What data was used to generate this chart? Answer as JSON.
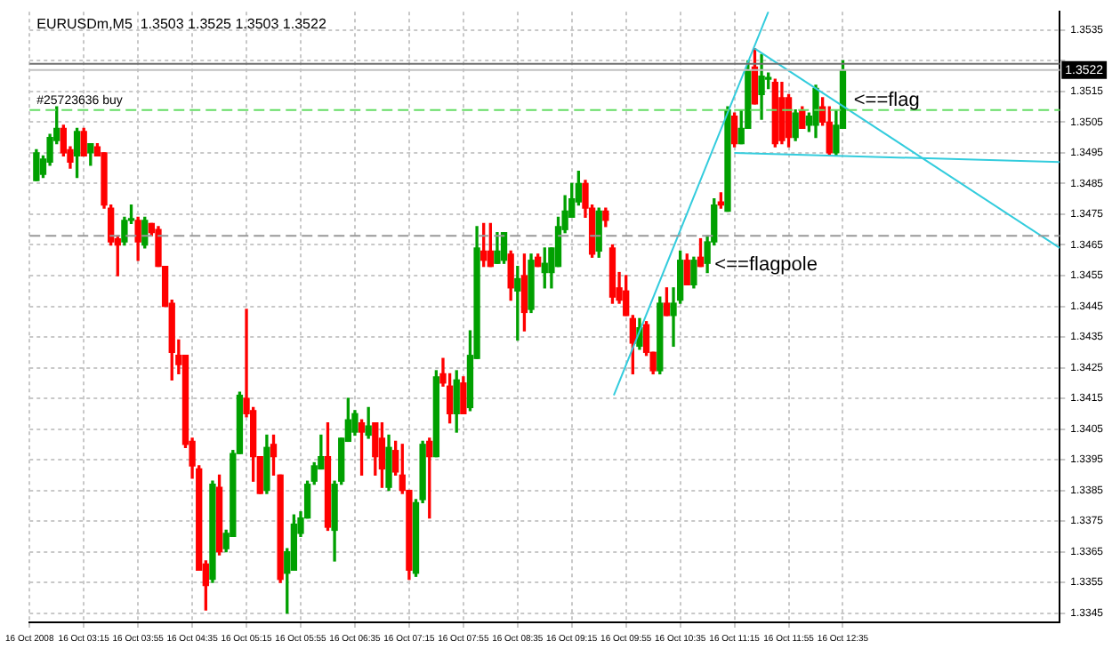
{
  "chart_data": {
    "type": "candlestick",
    "title": "EURUSDm,M5  1.3503 1.3525 1.3503 1.3522",
    "x": [
      "2008-10-16T02:40",
      "2008-10-16T02:45",
      "2008-10-16T02:50",
      "2008-10-16T02:55",
      "2008-10-16T03:00",
      "2008-10-16T03:05",
      "2008-10-16T03:10",
      "2008-10-16T03:15",
      "2008-10-16T03:20",
      "2008-10-16T03:25",
      "2008-10-16T03:30",
      "2008-10-16T03:35",
      "2008-10-16T03:40",
      "2008-10-16T03:45",
      "2008-10-16T03:50",
      "2008-10-16T03:55",
      "2008-10-16T04:00",
      "2008-10-16T04:05",
      "2008-10-16T04:10",
      "2008-10-16T04:15",
      "2008-10-16T04:20",
      "2008-10-16T04:25",
      "2008-10-16T04:30",
      "2008-10-16T04:35",
      "2008-10-16T04:40",
      "2008-10-16T04:45",
      "2008-10-16T04:50",
      "2008-10-16T04:55",
      "2008-10-16T05:00",
      "2008-10-16T05:05",
      "2008-10-16T05:10",
      "2008-10-16T05:15",
      "2008-10-16T05:20",
      "2008-10-16T05:25",
      "2008-10-16T05:30",
      "2008-10-16T05:35",
      "2008-10-16T05:40",
      "2008-10-16T05:45",
      "2008-10-16T05:50",
      "2008-10-16T05:55",
      "2008-10-16T06:00",
      "2008-10-16T06:05",
      "2008-10-16T06:10",
      "2008-10-16T06:15",
      "2008-10-16T06:20",
      "2008-10-16T06:25",
      "2008-10-16T06:30",
      "2008-10-16T06:35",
      "2008-10-16T06:40",
      "2008-10-16T06:45",
      "2008-10-16T06:50",
      "2008-10-16T06:55",
      "2008-10-16T07:00",
      "2008-10-16T07:05",
      "2008-10-16T07:10",
      "2008-10-16T07:15",
      "2008-10-16T07:20",
      "2008-10-16T07:25",
      "2008-10-16T07:30",
      "2008-10-16T07:35",
      "2008-10-16T07:40",
      "2008-10-16T07:45",
      "2008-10-16T07:50",
      "2008-10-16T07:55",
      "2008-10-16T08:00",
      "2008-10-16T08:05",
      "2008-10-16T08:10",
      "2008-10-16T08:15",
      "2008-10-16T08:20",
      "2008-10-16T08:25",
      "2008-10-16T08:30",
      "2008-10-16T08:35",
      "2008-10-16T08:40",
      "2008-10-16T08:45",
      "2008-10-16T08:50",
      "2008-10-16T08:55",
      "2008-10-16T09:00",
      "2008-10-16T09:05",
      "2008-10-16T09:10",
      "2008-10-16T09:15",
      "2008-10-16T09:20",
      "2008-10-16T09:25",
      "2008-10-16T09:30",
      "2008-10-16T09:35",
      "2008-10-16T09:40",
      "2008-10-16T09:45",
      "2008-10-16T09:50",
      "2008-10-16T09:55",
      "2008-10-16T10:00",
      "2008-10-16T10:05",
      "2008-10-16T10:10",
      "2008-10-16T10:15",
      "2008-10-16T10:20",
      "2008-10-16T10:25",
      "2008-10-16T10:30",
      "2008-10-16T10:35",
      "2008-10-16T10:40",
      "2008-10-16T10:45",
      "2008-10-16T10:50",
      "2008-10-16T10:55",
      "2008-10-16T11:00",
      "2008-10-16T11:05",
      "2008-10-16T11:10",
      "2008-10-16T11:15",
      "2008-10-16T11:20",
      "2008-10-16T11:25",
      "2008-10-16T11:30",
      "2008-10-16T11:35",
      "2008-10-16T11:40",
      "2008-10-16T11:45",
      "2008-10-16T11:50",
      "2008-10-16T11:55",
      "2008-10-16T12:00",
      "2008-10-16T12:05",
      "2008-10-16T12:10",
      "2008-10-16T12:15",
      "2008-10-16T12:20",
      "2008-10-16T12:25",
      "2008-10-16T12:30",
      "2008-10-16T12:35"
    ],
    "ohlc": [
      [
        1.3486,
        1.3496,
        1.3486,
        1.3495
      ],
      [
        1.3488,
        1.3494,
        1.3487,
        1.3493
      ],
      [
        1.3492,
        1.3501,
        1.3491,
        1.35
      ],
      [
        1.3499,
        1.351,
        1.3498,
        1.3503
      ],
      [
        1.3503,
        1.3504,
        1.3494,
        1.3495
      ],
      [
        1.3496,
        1.3497,
        1.349,
        1.3492
      ],
      [
        1.3494,
        1.3503,
        1.3487,
        1.3502
      ],
      [
        1.3502,
        1.3503,
        1.3494,
        1.3494
      ],
      [
        1.3495,
        1.3498,
        1.3491,
        1.3498
      ],
      [
        1.3497,
        1.3498,
        1.3494,
        1.3494
      ],
      [
        1.3495,
        1.3495,
        1.3477,
        1.3478
      ],
      [
        1.3477,
        1.3478,
        1.3465,
        1.3466
      ],
      [
        1.3467,
        1.3468,
        1.3455,
        1.3465
      ],
      [
        1.3466,
        1.3474,
        1.3465,
        1.3473
      ],
      [
        1.3473,
        1.3478,
        1.3472,
        1.3473
      ],
      [
        1.3473,
        1.3474,
        1.346,
        1.3466
      ],
      [
        1.3465,
        1.3474,
        1.3464,
        1.3473
      ],
      [
        1.3472,
        1.3472,
        1.3468,
        1.3469
      ],
      [
        1.347,
        1.3471,
        1.3458,
        1.3458
      ],
      [
        1.3458,
        1.3458,
        1.3445,
        1.3445
      ],
      [
        1.3446,
        1.3447,
        1.3421,
        1.343
      ],
      [
        1.3429,
        1.3434,
        1.3423,
        1.3426
      ],
      [
        1.3429,
        1.3429,
        1.3399,
        1.34
      ],
      [
        1.3401,
        1.3402,
        1.3389,
        1.3393
      ],
      [
        1.3392,
        1.3393,
        1.3359,
        1.3359
      ],
      [
        1.3361,
        1.3362,
        1.3346,
        1.3354
      ],
      [
        1.3356,
        1.3388,
        1.3355,
        1.3387
      ],
      [
        1.3386,
        1.339,
        1.3364,
        1.3365
      ],
      [
        1.3366,
        1.3372,
        1.3365,
        1.3371
      ],
      [
        1.337,
        1.3398,
        1.337,
        1.3397
      ],
      [
        1.3397,
        1.3417,
        1.3397,
        1.3416
      ],
      [
        1.3415,
        1.3444,
        1.3409,
        1.341
      ],
      [
        1.3411,
        1.3412,
        1.3388,
        1.3396
      ],
      [
        1.3396,
        1.3396,
        1.3384,
        1.3384
      ],
      [
        1.3385,
        1.3403,
        1.3384,
        1.3399
      ],
      [
        1.34,
        1.3403,
        1.339,
        1.3396
      ],
      [
        1.339,
        1.339,
        1.3355,
        1.3356
      ],
      [
        1.3358,
        1.3366,
        1.3345,
        1.3365
      ],
      [
        1.3359,
        1.3377,
        1.3359,
        1.3374
      ],
      [
        1.3371,
        1.3378,
        1.337,
        1.3376
      ],
      [
        1.3376,
        1.3388,
        1.3376,
        1.3387
      ],
      [
        1.3388,
        1.3394,
        1.3387,
        1.3393
      ],
      [
        1.3392,
        1.3403,
        1.3392,
        1.3396
      ],
      [
        1.3396,
        1.3407,
        1.3372,
        1.3373
      ],
      [
        1.3372,
        1.3388,
        1.3362,
        1.3387
      ],
      [
        1.3388,
        1.3402,
        1.3387,
        1.3402
      ],
      [
        1.3401,
        1.3415,
        1.3401,
        1.3408
      ],
      [
        1.3404,
        1.3411,
        1.3403,
        1.341
      ],
      [
        1.3407,
        1.3408,
        1.339,
        1.3404
      ],
      [
        1.3403,
        1.3412,
        1.3402,
        1.3406
      ],
      [
        1.3407,
        1.3407,
        1.339,
        1.3396
      ],
      [
        1.3402,
        1.3407,
        1.3386,
        1.3392
      ],
      [
        1.3386,
        1.3403,
        1.3385,
        1.3399
      ],
      [
        1.3398,
        1.3401,
        1.339,
        1.3391
      ],
      [
        1.339,
        1.34,
        1.3384,
        1.3385
      ],
      [
        1.3385,
        1.3385,
        1.3356,
        1.3359
      ],
      [
        1.3358,
        1.3382,
        1.3357,
        1.3381
      ],
      [
        1.3382,
        1.3401,
        1.3381,
        1.34
      ],
      [
        1.3401,
        1.3402,
        1.3376,
        1.3396
      ],
      [
        1.3396,
        1.3424,
        1.3396,
        1.3422
      ],
      [
        1.3423,
        1.3428,
        1.3419,
        1.342
      ],
      [
        1.3419,
        1.3423,
        1.3407,
        1.341
      ],
      [
        1.341,
        1.3424,
        1.3404,
        1.3421
      ],
      [
        1.342,
        1.3422,
        1.341,
        1.341
      ],
      [
        1.3412,
        1.3437,
        1.3411,
        1.3429
      ],
      [
        1.3428,
        1.3471,
        1.3428,
        1.3464
      ],
      [
        1.3463,
        1.3472,
        1.3458,
        1.346
      ],
      [
        1.3463,
        1.3472,
        1.3458,
        1.3458
      ],
      [
        1.3459,
        1.3469,
        1.3459,
        1.3463
      ],
      [
        1.346,
        1.3469,
        1.3459,
        1.3469
      ],
      [
        1.3462,
        1.3463,
        1.3447,
        1.3451
      ],
      [
        1.345,
        1.3458,
        1.3434,
        1.3454
      ],
      [
        1.3455,
        1.3462,
        1.3437,
        1.3443
      ],
      [
        1.3444,
        1.3462,
        1.3443,
        1.346
      ],
      [
        1.3461,
        1.3462,
        1.3458,
        1.3458
      ],
      [
        1.3456,
        1.3464,
        1.3451,
        1.3459
      ],
      [
        1.3456,
        1.3464,
        1.3451,
        1.3464
      ],
      [
        1.3458,
        1.3474,
        1.3458,
        1.3471
      ],
      [
        1.347,
        1.3481,
        1.3469,
        1.3476
      ],
      [
        1.3474,
        1.3485,
        1.3474,
        1.348
      ],
      [
        1.3479,
        1.3489,
        1.3478,
        1.3485
      ],
      [
        1.3485,
        1.3486,
        1.3474,
        1.3477
      ],
      [
        1.3477,
        1.3478,
        1.3461,
        1.3462
      ],
      [
        1.3463,
        1.3477,
        1.3461,
        1.3476
      ],
      [
        1.3476,
        1.3477,
        1.3471,
        1.3473
      ],
      [
        1.3464,
        1.3465,
        1.3446,
        1.3448
      ],
      [
        1.3451,
        1.3456,
        1.3446,
        1.3447
      ],
      [
        1.345,
        1.3455,
        1.3442,
        1.3442
      ],
      [
        1.3441,
        1.3442,
        1.3423,
        1.3433
      ],
      [
        1.3432,
        1.3441,
        1.3431,
        1.3438
      ],
      [
        1.3439,
        1.344,
        1.3429,
        1.343
      ],
      [
        1.343,
        1.343,
        1.3423,
        1.3424
      ],
      [
        1.3424,
        1.3448,
        1.3423,
        1.3446
      ],
      [
        1.3446,
        1.3451,
        1.3442,
        1.3442
      ],
      [
        1.3442,
        1.3451,
        1.3432,
        1.3446
      ],
      [
        1.3447,
        1.3463,
        1.3446,
        1.346
      ],
      [
        1.346,
        1.3462,
        1.3452,
        1.3452
      ],
      [
        1.3452,
        1.3461,
        1.3451,
        1.346
      ],
      [
        1.3461,
        1.3467,
        1.3458,
        1.3458
      ],
      [
        1.3459,
        1.3468,
        1.3456,
        1.3466
      ],
      [
        1.3466,
        1.348,
        1.3465,
        1.3478
      ],
      [
        1.3479,
        1.3482,
        1.3477,
        1.3478
      ],
      [
        1.3476,
        1.351,
        1.3476,
        1.3509
      ],
      [
        1.3507,
        1.3508,
        1.3497,
        1.3498
      ],
      [
        1.3498,
        1.3509,
        1.3498,
        1.3503
      ],
      [
        1.3503,
        1.3525,
        1.3503,
        1.3522
      ],
      [
        1.3523,
        1.3529,
        1.3511,
        1.3511
      ],
      [
        1.3514,
        1.3527,
        1.3506,
        1.352
      ],
      [
        1.3519,
        1.3521,
        1.3516,
        1.3519
      ],
      [
        1.3518,
        1.3519,
        1.3497,
        1.3498
      ],
      [
        1.3513,
        1.3518,
        1.3498,
        1.3499
      ],
      [
        1.3513,
        1.3514,
        1.3497,
        1.35
      ],
      [
        1.35,
        1.3509,
        1.3499,
        1.3508
      ],
      [
        1.3509,
        1.351,
        1.3503,
        1.3503
      ],
      [
        1.3504,
        1.3508,
        1.3502,
        1.3507
      ],
      [
        1.3504,
        1.3517,
        1.35,
        1.3516
      ],
      [
        1.351,
        1.3513,
        1.3504,
        1.3505
      ],
      [
        1.3505,
        1.351,
        1.3494,
        1.3495
      ],
      [
        1.3495,
        1.3509,
        1.3494,
        1.3504
      ],
      [
        1.3503,
        1.3525,
        1.3503,
        1.3522
      ]
    ],
    "series": [
      {
        "type": "line",
        "color": "#33ccdd",
        "x": [
          "2008-10-16T09:46",
          "2008-10-16T11:40"
        ],
        "values": [
          1.3416,
          1.3541
        ]
      },
      {
        "type": "line",
        "color": "#33ccdd",
        "x": [
          "2008-10-16T11:30",
          "2008-10-16T15:15"
        ],
        "values": [
          1.3529,
          1.3464
        ]
      },
      {
        "type": "line",
        "color": "#33ccdd",
        "x": [
          "2008-10-16T11:15",
          "2008-10-16T15:15"
        ],
        "values": [
          1.3495,
          1.3492
        ]
      }
    ],
    "xlim": [
      "2008-10-16T02:35",
      "2008-10-16T15:15"
    ],
    "xticks": [
      {
        "value": "2008-10-16T02:35",
        "label": "16 Oct 2008"
      },
      {
        "value": "2008-10-16T03:15",
        "label": "16 Oct 03:15"
      },
      {
        "value": "2008-10-16T03:55",
        "label": "16 Oct 03:55"
      },
      {
        "value": "2008-10-16T04:35",
        "label": "16 Oct 04:35"
      },
      {
        "value": "2008-10-16T05:15",
        "label": "16 Oct 05:15"
      },
      {
        "value": "2008-10-16T05:55",
        "label": "16 Oct 05:55"
      },
      {
        "value": "2008-10-16T06:35",
        "label": "16 Oct 06:35"
      },
      {
        "value": "2008-10-16T07:15",
        "label": "16 Oct 07:15"
      },
      {
        "value": "2008-10-16T07:55",
        "label": "16 Oct 07:55"
      },
      {
        "value": "2008-10-16T08:35",
        "label": "16 Oct 08:35"
      },
      {
        "value": "2008-10-16T09:15",
        "label": "16 Oct 09:15"
      },
      {
        "value": "2008-10-16T09:55",
        "label": "16 Oct 09:55"
      },
      {
        "value": "2008-10-16T10:35",
        "label": "16 Oct 10:35"
      },
      {
        "value": "2008-10-16T11:15",
        "label": "16 Oct 11:15"
      },
      {
        "value": "2008-10-16T11:55",
        "label": "16 Oct 11:55"
      },
      {
        "value": "2008-10-16T12:35",
        "label": "16 Oct 12:35"
      }
    ],
    "ylim": [
      1.3342,
      1.3541
    ],
    "yticks": [
      1.3345,
      1.3355,
      1.3365,
      1.3375,
      1.3385,
      1.3395,
      1.3405,
      1.3415,
      1.3425,
      1.3435,
      1.3445,
      1.3455,
      1.3465,
      1.3475,
      1.3485,
      1.3495,
      1.3505,
      1.3515,
      {
        "value": 1.3525,
        "label": null
      },
      1.3535
    ],
    "grid": true,
    "ref_lines": [
      {
        "axis": "y",
        "value": 1.3509,
        "label": "#25723636 buy",
        "color": "#66dd66",
        "line_style": "dashed"
      },
      {
        "axis": "y",
        "value": 1.3468,
        "color": "#999999",
        "line_style": "dashed"
      },
      {
        "axis": "y",
        "value": 1.3524,
        "color": "#707070",
        "line_style": "solid"
      },
      {
        "axis": "y",
        "value": 1.3522,
        "label": "1.3522",
        "color": "#c0c0c0",
        "line_style": "solid"
      }
    ],
    "annotations": [
      "<==flag",
      "<==flagpole"
    ]
  }
}
